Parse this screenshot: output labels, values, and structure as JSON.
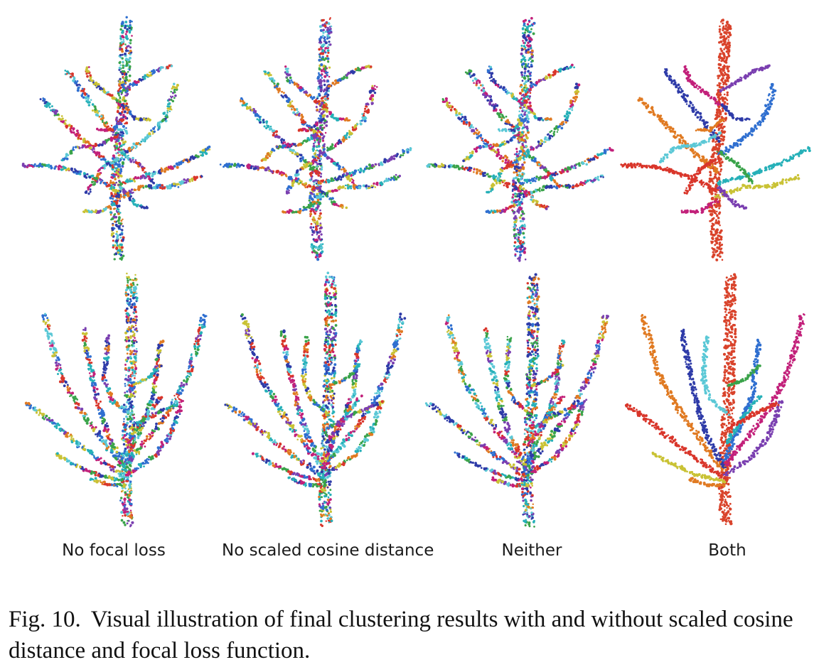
{
  "figure": {
    "columns": [
      {
        "label": "No focal loss",
        "coloring": "fragmented"
      },
      {
        "label": "No scaled cosine distance",
        "coloring": "fragmented"
      },
      {
        "label": "Neither",
        "coloring": "fragmented"
      },
      {
        "label": "Both",
        "coloring": "per-branch"
      }
    ],
    "rows": [
      {
        "tree": "tree-a"
      },
      {
        "tree": "tree-b"
      }
    ],
    "palette": [
      "#2e3ba8",
      "#3aa34a",
      "#26b0b8",
      "#c2207a",
      "#d9362b",
      "#c9c235",
      "#7a3fb0",
      "#e07a22",
      "#5bc8d6",
      "#2f6fd0"
    ],
    "trunk_color_both": "#d9432b"
  },
  "caption": {
    "number": "Fig. 10.",
    "text": "Visual illustration of final clustering results with and without scaled cosine distance and focal loss function."
  }
}
